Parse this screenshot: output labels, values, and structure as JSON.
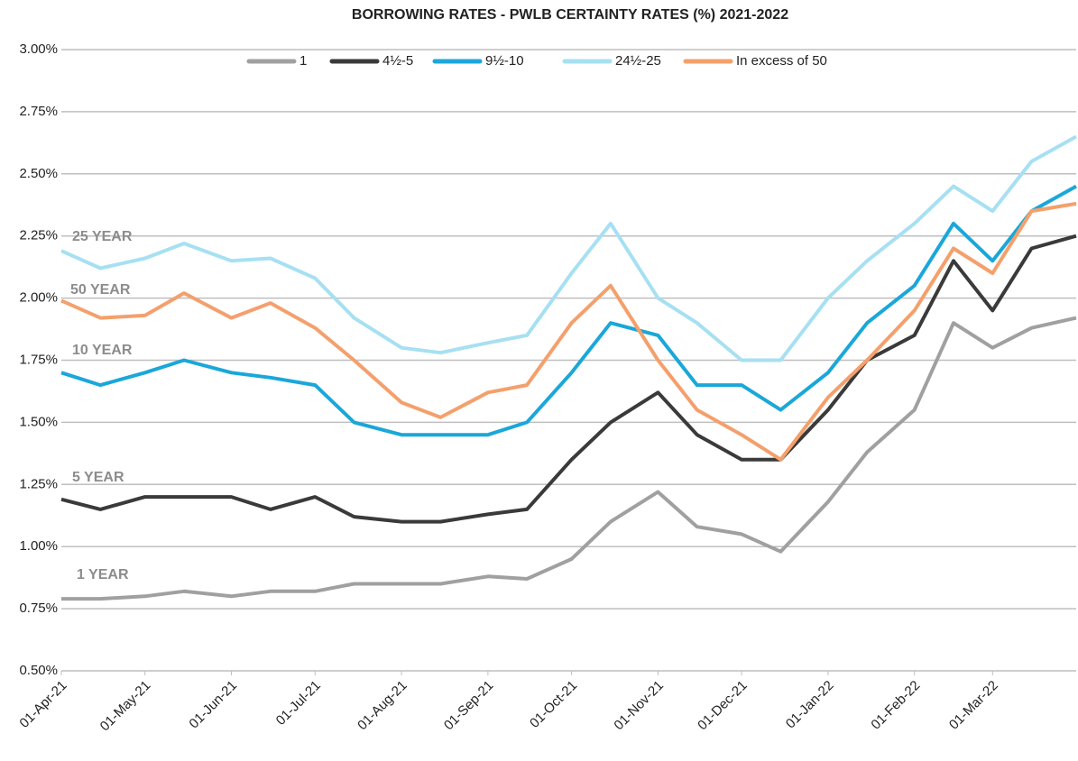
{
  "chart_data": {
    "type": "line",
    "title": "BORROWING RATES - PWLB CERTAINTY RATES (%) 2021-2022",
    "x": [
      "2021-04-01",
      "2021-04-15",
      "2021-05-01",
      "2021-05-15",
      "2021-06-01",
      "2021-06-15",
      "2021-07-01",
      "2021-07-15",
      "2021-08-01",
      "2021-08-15",
      "2021-09-01",
      "2021-09-15",
      "2021-10-01",
      "2021-10-15",
      "2021-11-01",
      "2021-11-15",
      "2021-12-01",
      "2021-12-15",
      "2022-01-01",
      "2022-01-15",
      "2022-02-01",
      "2022-02-15",
      "2022-03-01",
      "2022-03-15",
      "2022-03-31"
    ],
    "series": [
      {
        "name": "1",
        "color": "#a0a0a0",
        "values": [
          0.79,
          0.79,
          0.8,
          0.82,
          0.8,
          0.82,
          0.82,
          0.85,
          0.85,
          0.85,
          0.88,
          0.87,
          0.95,
          1.1,
          1.22,
          1.08,
          1.05,
          0.98,
          1.18,
          1.38,
          1.55,
          1.9,
          1.8,
          1.88,
          1.92
        ]
      },
      {
        "name": "4½-5",
        "color": "#3a3a3a",
        "values": [
          1.19,
          1.15,
          1.2,
          1.2,
          1.2,
          1.15,
          1.2,
          1.12,
          1.1,
          1.1,
          1.13,
          1.15,
          1.35,
          1.5,
          1.62,
          1.45,
          1.35,
          1.35,
          1.55,
          1.75,
          1.85,
          2.15,
          1.95,
          2.2,
          2.25
        ]
      },
      {
        "name": "9½-10",
        "color": "#1aa7d9",
        "values": [
          1.7,
          1.65,
          1.7,
          1.75,
          1.7,
          1.68,
          1.65,
          1.5,
          1.45,
          1.45,
          1.45,
          1.5,
          1.7,
          1.9,
          1.85,
          1.65,
          1.65,
          1.55,
          1.7,
          1.9,
          2.05,
          2.3,
          2.15,
          2.35,
          2.45
        ]
      },
      {
        "name": "24½-25",
        "color": "#a6e0f2",
        "values": [
          2.19,
          2.12,
          2.16,
          2.22,
          2.15,
          2.16,
          2.08,
          1.92,
          1.8,
          1.78,
          1.82,
          1.85,
          2.1,
          2.3,
          2.0,
          1.9,
          1.75,
          1.75,
          2.0,
          2.15,
          2.3,
          2.45,
          2.35,
          2.55,
          2.65
        ]
      },
      {
        "name": "In excess of 50",
        "color": "#f4a06c",
        "values": [
          1.99,
          1.92,
          1.93,
          2.02,
          1.92,
          1.98,
          1.88,
          1.75,
          1.58,
          1.52,
          1.62,
          1.65,
          1.9,
          2.05,
          1.75,
          1.55,
          1.45,
          1.35,
          1.6,
          1.75,
          1.95,
          2.2,
          2.1,
          2.35,
          2.38
        ]
      }
    ],
    "annotations": [
      "25 YEAR",
      "50 YEAR",
      "10 YEAR",
      "5 YEAR",
      "1 YEAR"
    ],
    "xlim": [
      "2021-04-01",
      "2022-03-31"
    ],
    "xticks": [
      {
        "value": "2021-04-01",
        "label": "01-Apr-21"
      },
      {
        "value": "2021-05-01",
        "label": "01-May-21"
      },
      {
        "value": "2021-06-01",
        "label": "01-Jun-21"
      },
      {
        "value": "2021-07-01",
        "label": "01-Jul-21"
      },
      {
        "value": "2021-08-01",
        "label": "01-Aug-21"
      },
      {
        "value": "2021-09-01",
        "label": "01-Sep-21"
      },
      {
        "value": "2021-10-01",
        "label": "01-Oct-21"
      },
      {
        "value": "2021-11-01",
        "label": "01-Nov-21"
      },
      {
        "value": "2021-12-01",
        "label": "01-Dec-21"
      },
      {
        "value": "2022-01-01",
        "label": "01-Jan-22"
      },
      {
        "value": "2022-02-01",
        "label": "01-Feb-22"
      },
      {
        "value": "2022-03-01",
        "label": "01-Mar-22"
      }
    ],
    "ylim": [
      0.5,
      3.0
    ],
    "yticks": [
      {
        "value": 0.5,
        "label": "0.50%"
      },
      {
        "value": 0.75,
        "label": "0.75%"
      },
      {
        "value": 1.0,
        "label": "1.00%"
      },
      {
        "value": 1.25,
        "label": "1.25%"
      },
      {
        "value": 1.5,
        "label": "1.50%"
      },
      {
        "value": 1.75,
        "label": "1.75%"
      },
      {
        "value": 2.0,
        "label": "2.00%"
      },
      {
        "value": 2.25,
        "label": "2.25%"
      },
      {
        "value": 2.5,
        "label": "2.50%"
      },
      {
        "value": 2.75,
        "label": "2.75%"
      },
      {
        "value": 3.0,
        "label": "3.00%"
      }
    ],
    "grid": true,
    "legend": "top"
  }
}
